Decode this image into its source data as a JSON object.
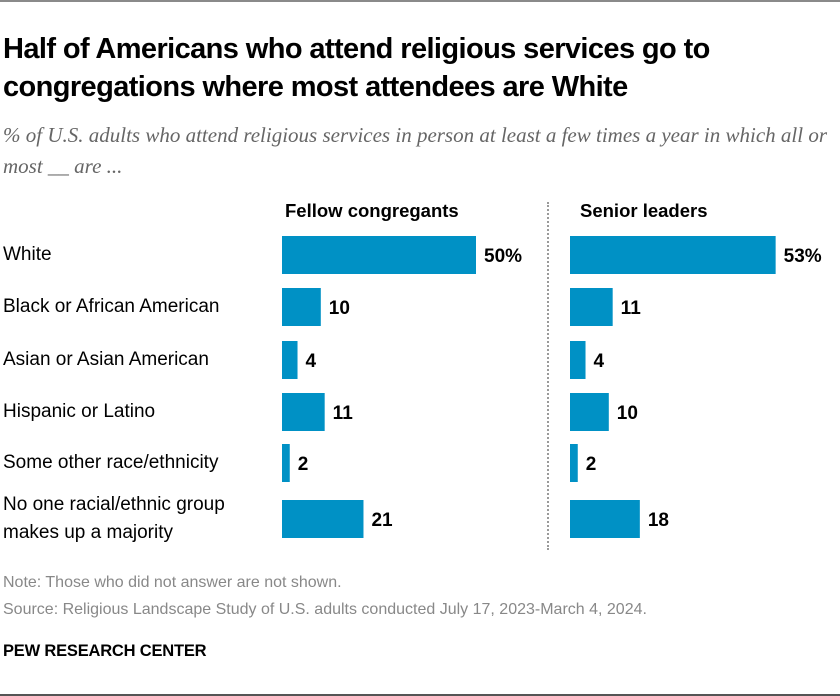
{
  "header": {
    "title": "Half of Americans who attend religious services go to congregations where most attendees are White",
    "subtitle": "% of U.S. adults who attend religious services in person at least a few times a year in which all or most __ are ..."
  },
  "colors": {
    "bar": "#0091C5",
    "divider": "#9a9a9a",
    "note_text": "#888888"
  },
  "chart_data": {
    "type": "bar",
    "orientation": "horizontal",
    "title": "Half of Americans who attend religious services go to congregations where most attendees are White",
    "subtitle": "% of U.S. adults who attend religious services in person at least a few times a year in which all or most __ are ...",
    "categories": [
      "White",
      "Black or African American",
      "Asian or Asian American",
      "Hispanic or Latino",
      "Some other race/ethnicity",
      "No one racial/ethnic group makes up a majority"
    ],
    "category_lines": [
      [
        "White"
      ],
      [
        "Black or African American"
      ],
      [
        "Asian or Asian American"
      ],
      [
        "Hispanic or Latino"
      ],
      [
        "Some other race/ethnicity"
      ],
      [
        "No one racial/ethnic group",
        "makes up a majority"
      ]
    ],
    "series": [
      {
        "name": "Fellow congregants",
        "values": [
          50,
          10,
          4,
          11,
          2,
          21
        ],
        "labels": [
          "50%",
          "10",
          "4",
          "11",
          "2",
          "21"
        ]
      },
      {
        "name": "Senior leaders",
        "values": [
          53,
          11,
          4,
          10,
          2,
          18
        ],
        "labels": [
          "53%",
          "11",
          "4",
          "10",
          "2",
          "18"
        ]
      }
    ],
    "xlabel": "",
    "ylabel": "",
    "xlim": [
      0,
      100
    ],
    "grid": false,
    "legend": "none (panel headers)",
    "units": "%"
  },
  "footer": {
    "note": "Note: Those who did not answer are not shown.",
    "source": "Source: Religious Landscape Study of U.S. adults conducted July 17, 2023-March 4, 2024.",
    "brand": "PEW RESEARCH CENTER"
  }
}
